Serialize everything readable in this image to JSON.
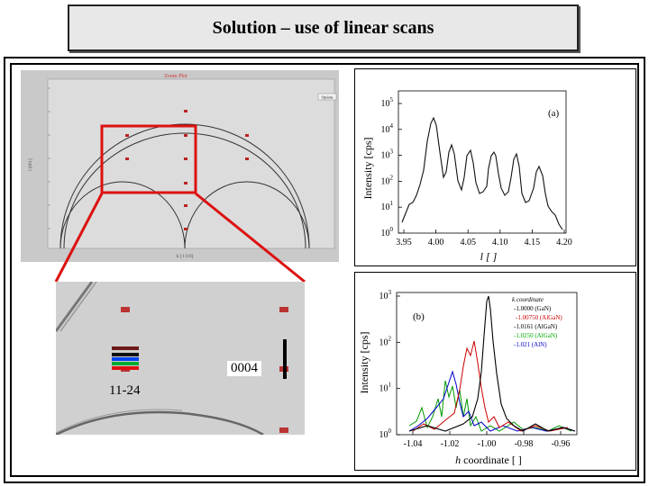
{
  "title": "Solution – use of linear scans",
  "zoom_main": {
    "heading": "Zoom Plot",
    "button": "Options",
    "x_label": "h [ 1 0 0]",
    "y_label": "l [001]"
  },
  "detail": {
    "label_0004": "0004",
    "label_1124": "11-24"
  },
  "plot_a": {
    "panel_label": "(a)",
    "y_label": "Intensity [cps]",
    "x_label": "l [ ]",
    "x_ticks": [
      "3.95",
      "4.00",
      "4.05",
      "4.10",
      "4.15",
      "4.20"
    ],
    "y_ticks": [
      {
        "base": "10",
        "exp": "5"
      },
      {
        "base": "10",
        "exp": "4"
      },
      {
        "base": "10",
        "exp": "3"
      },
      {
        "base": "10",
        "exp": "2"
      },
      {
        "base": "10",
        "exp": "1"
      },
      {
        "base": "10",
        "exp": "0"
      }
    ]
  },
  "plot_b": {
    "panel_label": "(b)",
    "y_label": "Intensity [cps]",
    "x_label_italic": "h",
    "x_label_rest": " coordinate [ ]",
    "x_ticks": [
      "-1.04",
      "-1.02",
      "-1.00",
      "-0.98",
      "-0.96"
    ],
    "y_ticks": [
      {
        "base": "10",
        "exp": "3"
      },
      {
        "base": "10",
        "exp": "2"
      },
      {
        "base": "10",
        "exp": "1"
      },
      {
        "base": "10",
        "exp": "0"
      }
    ],
    "legend_title": "k coordinate",
    "legend": [
      {
        "text": "-1.0000 (GaN)",
        "color": "#000000"
      },
      {
        "text": "-1.00750 (AlGaN)",
        "color": "#cc0000"
      },
      {
        "text": "-1.0161 (AlGaN)",
        "color": "#000000"
      },
      {
        "text": "-1.0250 (AlGaN)",
        "color": "#00aa00"
      },
      {
        "text": "-1.021 (AlN)",
        "color": "#0000cc"
      }
    ]
  },
  "colors": {
    "highlight": "#dd1111",
    "background": "#ffffff"
  }
}
